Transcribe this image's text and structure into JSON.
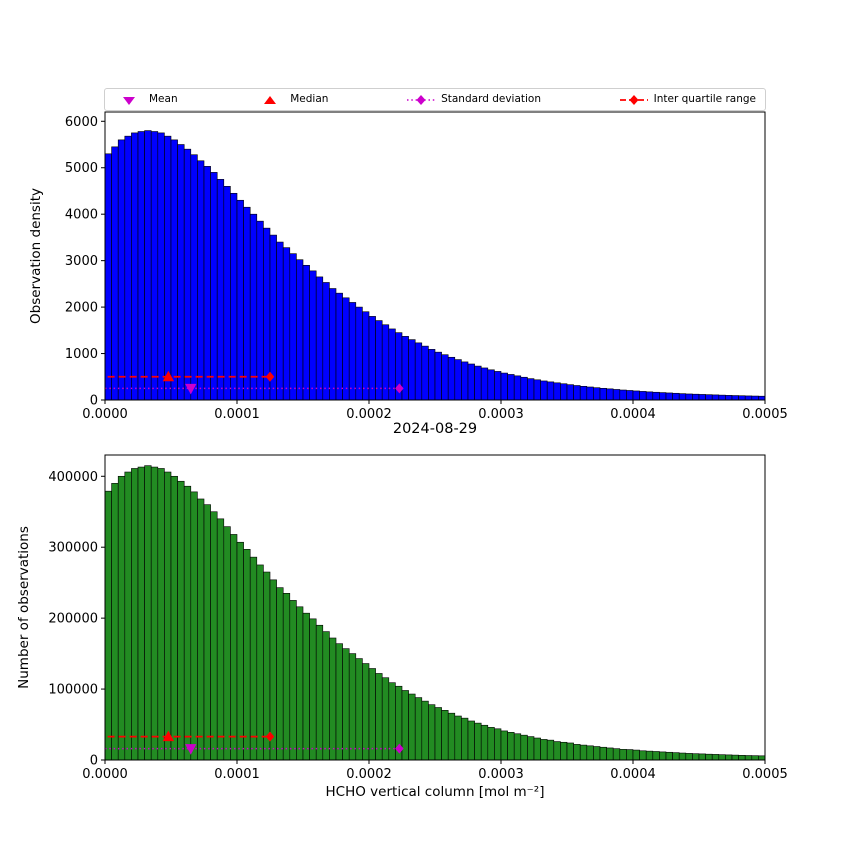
{
  "figure": {
    "title": "2024-08-29",
    "xlabel": "HCHO vertical column [mol m⁻²]",
    "background": "#ffffff"
  },
  "legend": {
    "items": [
      {
        "label": "Mean",
        "marker": "triangle-down",
        "color": "#CC00CC",
        "linestyle": "none"
      },
      {
        "label": "Median",
        "marker": "triangle-up",
        "color": "#FF0000",
        "linestyle": "none"
      },
      {
        "label": "Standard deviation",
        "marker": "diamond",
        "color": "#CC00CC",
        "linestyle": "dotted"
      },
      {
        "label": "Inter quartile range",
        "marker": "diamond",
        "color": "#FF0000",
        "linestyle": "dashed"
      }
    ]
  },
  "chart_data": [
    {
      "type": "bar",
      "name": "observation-density-histogram",
      "ylabel": "Observation density",
      "bar_color": "#0000FF",
      "edge_color": "#000000",
      "xlim": [
        0,
        0.0005
      ],
      "ylim": [
        0,
        6200
      ],
      "bin_start": 0,
      "bin_width": 5e-06,
      "xticks": [
        0,
        0.0001,
        0.0002,
        0.0003,
        0.0004,
        0.0005
      ],
      "xtick_labels": [
        "0.0000",
        "0.0001",
        "0.0002",
        "0.0003",
        "0.0004",
        "0.0005"
      ],
      "yticks": [
        0,
        1000,
        2000,
        3000,
        4000,
        5000,
        6000
      ],
      "ytick_labels": [
        "0",
        "1000",
        "2000",
        "3000",
        "4000",
        "5000",
        "6000"
      ],
      "values": [
        5300,
        5450,
        5600,
        5680,
        5750,
        5780,
        5800,
        5780,
        5750,
        5680,
        5600,
        5500,
        5400,
        5280,
        5150,
        5030,
        4900,
        4750,
        4600,
        4450,
        4300,
        4150,
        4000,
        3850,
        3700,
        3550,
        3400,
        3280,
        3150,
        3020,
        2900,
        2780,
        2650,
        2530,
        2400,
        2300,
        2200,
        2100,
        2000,
        1900,
        1800,
        1710,
        1620,
        1530,
        1450,
        1370,
        1300,
        1230,
        1160,
        1090,
        1030,
        975,
        920,
        870,
        820,
        775,
        730,
        690,
        650,
        615,
        580,
        550,
        520,
        490,
        460,
        435,
        410,
        390,
        370,
        350,
        330,
        312,
        295,
        280,
        265,
        252,
        240,
        227,
        215,
        205,
        195,
        185,
        175,
        167,
        160,
        152,
        145,
        137,
        130,
        125,
        120,
        115,
        110,
        105,
        100,
        96,
        92,
        88,
        85,
        82
      ],
      "markers": {
        "mean_x": 6.5e-05,
        "median_x": 4.8e-05,
        "std_x0": 0,
        "std_x1": 0.000223,
        "std_y": 250,
        "iqr_x0": 2e-06,
        "iqr_x1": 0.000125,
        "iqr_y": 500,
        "mean_color": "#CC00CC",
        "median_color": "#FF0000",
        "std_color": "#CC00CC",
        "iqr_color": "#FF0000"
      }
    },
    {
      "type": "bar",
      "name": "number-of-observations-histogram",
      "ylabel": "Number of observations",
      "bar_color": "#228B22",
      "edge_color": "#000000",
      "xlim": [
        0,
        0.0005
      ],
      "ylim": [
        0,
        430000
      ],
      "bin_start": 0,
      "bin_width": 5e-06,
      "xticks": [
        0,
        0.0001,
        0.0002,
        0.0003,
        0.0004,
        0.0005
      ],
      "xtick_labels": [
        "0.0000",
        "0.0001",
        "0.0002",
        "0.0003",
        "0.0004",
        "0.0005"
      ],
      "yticks": [
        0,
        100000,
        200000,
        300000,
        400000
      ],
      "ytick_labels": [
        "0",
        "100000",
        "200000",
        "300000",
        "400000"
      ],
      "values": [
        379000,
        390000,
        400000,
        406000,
        411000,
        413000,
        415000,
        413000,
        411000,
        406000,
        400000,
        393000,
        386000,
        378000,
        368000,
        360000,
        350000,
        340000,
        329000,
        318000,
        307000,
        297000,
        286000,
        275000,
        265000,
        254000,
        243000,
        235000,
        225000,
        216000,
        207000,
        199000,
        190000,
        181000,
        172000,
        164000,
        157000,
        150000,
        143000,
        136000,
        129000,
        122000,
        116000,
        109000,
        104000,
        98000,
        93000,
        88000,
        83000,
        78000,
        74000,
        70000,
        66000,
        62000,
        59000,
        55000,
        52000,
        49000,
        46000,
        44000,
        41000,
        39000,
        37000,
        35000,
        33000,
        31000,
        29000,
        28000,
        26000,
        25000,
        24000,
        22000,
        21000,
        20000,
        19000,
        18000,
        17000,
        16000,
        15000,
        14700,
        14000,
        13000,
        12500,
        12000,
        11400,
        10900,
        10400,
        9800,
        9300,
        8900,
        8600,
        8200,
        7900,
        7500,
        7200,
        6900,
        6600,
        6300,
        6100,
        5900
      ],
      "markers": {
        "mean_x": 6.5e-05,
        "median_x": 4.8e-05,
        "std_x0": 0,
        "std_x1": 0.000223,
        "std_y": 16000,
        "iqr_x0": 2e-06,
        "iqr_x1": 0.000125,
        "iqr_y": 33000,
        "mean_color": "#CC00CC",
        "median_color": "#FF0000",
        "std_color": "#CC00CC",
        "iqr_color": "#FF0000"
      }
    }
  ]
}
